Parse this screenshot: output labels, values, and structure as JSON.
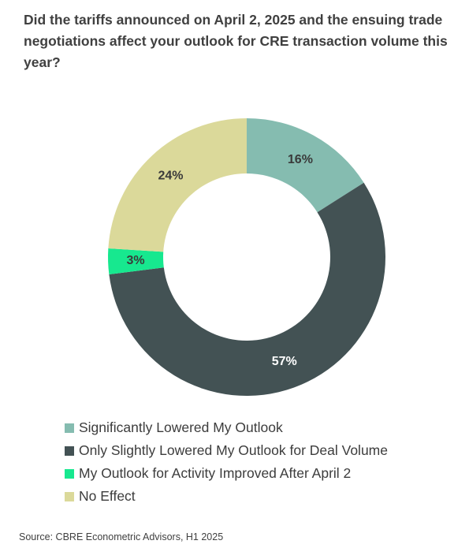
{
  "title": "Did the tariffs announced on April 2, 2025 and the ensuing trade negotiations affect your outlook for CRE transaction volume this year?",
  "source": "Source: CBRE Econometric Advisors, H1 2025",
  "chart_data": {
    "type": "pie",
    "variant": "donut",
    "title": "Did the tariffs announced on April 2, 2025 and the ensuing trade negotiations affect your outlook for CRE transaction volume this year?",
    "legend_position": "bottom",
    "slices": [
      {
        "name": "Significantly Lowered My Outlook",
        "value": 16,
        "label": "16%",
        "color": "#85bcb0"
      },
      {
        "name": "Only Slightly Lowered My Outlook for Deal Volume",
        "value": 57,
        "label": "57%",
        "color": "#435254"
      },
      {
        "name": "My Outlook for Activity Improved After April 2",
        "value": 3,
        "label": "3%",
        "color": "#17e88f"
      },
      {
        "name": "No Effect",
        "value": 24,
        "label": "24%",
        "color": "#dbd99a"
      }
    ]
  }
}
